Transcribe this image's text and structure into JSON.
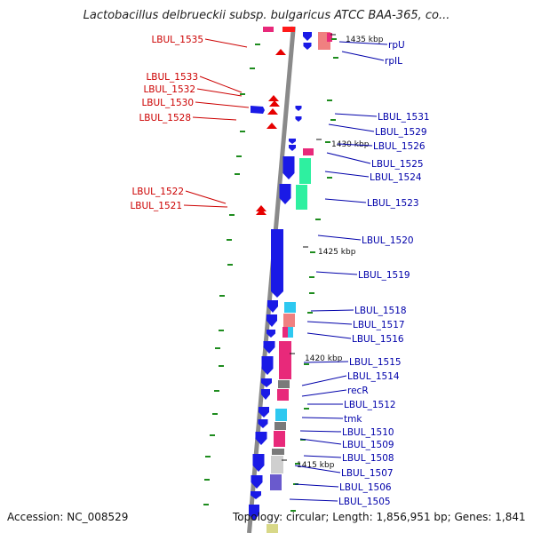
{
  "title": "Lactobacillus delbrueckii subsp. bulgaricus ATCC BAA-365, co...",
  "footer": {
    "accession": "Accession: NC_008529",
    "topology": "Topology: circular; Length: 1,856,951 bp; Genes: 1,841"
  },
  "colors": {
    "backbone": "#8a8a8a",
    "forward_gene": "#1a1ae6",
    "reverse_gene": "#e60000",
    "left_label": "#cc0000",
    "right_label": "#0000aa",
    "gc_tick": "#1e8c1e"
  },
  "kbp_markers": [
    "1435 kbp",
    "1430 kbp",
    "1425 kbp",
    "1420 kbp",
    "1415 kbp"
  ],
  "left_labels": [
    "LBUL_1535",
    "LBUL_1533",
    "LBUL_1532",
    "LBUL_1530",
    "LBUL_1528",
    "LBUL_1522",
    "LBUL_1521"
  ],
  "right_labels": [
    "rpU",
    "rpIL",
    "LBUL_1531",
    "LBUL_1529",
    "LBUL_1526",
    "LBUL_1525",
    "LBUL_1524",
    "LBUL_1523",
    "LBUL_1520",
    "LBUL_1519",
    "LBUL_1518",
    "LBUL_1517",
    "LBUL_1516",
    "LBUL_1515",
    "LBUL_1514",
    "recR",
    "LBUL_1512",
    "tmk",
    "LBUL_1510",
    "LBUL_1509",
    "LBUL_1508",
    "LBUL_1507",
    "LBUL_1506",
    "LBUL_1505"
  ]
}
